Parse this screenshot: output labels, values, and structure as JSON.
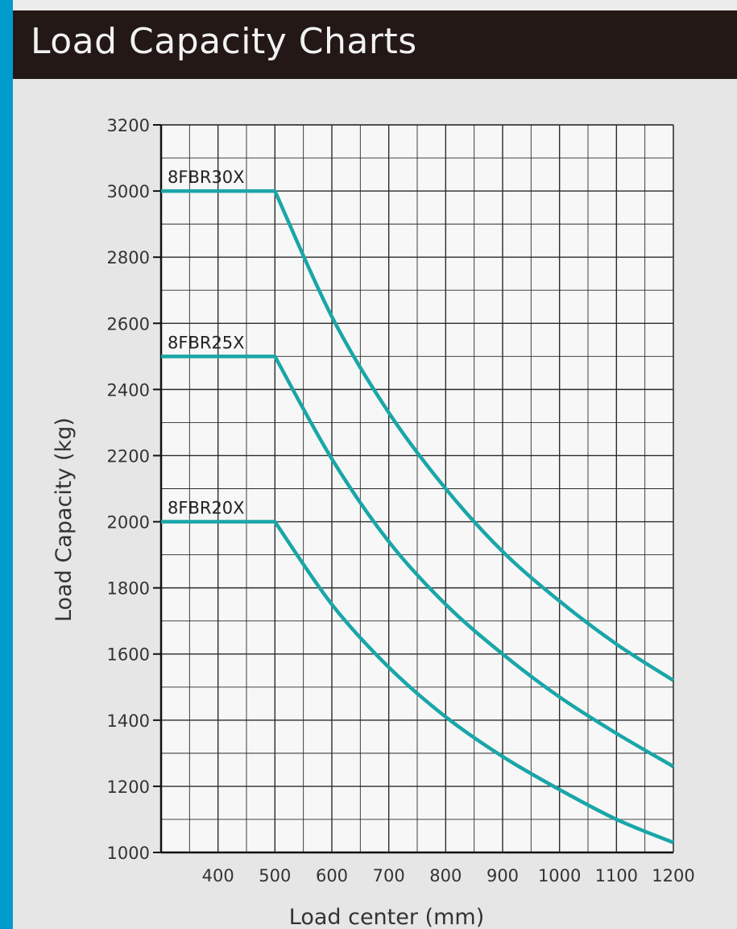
{
  "header": {
    "title": "Load Capacity Charts"
  },
  "colors": {
    "accent": "#009bcd",
    "header_bg": "#231815",
    "line": "#1aa6a8",
    "plot_bg": "#f7f7f7"
  },
  "chart_data": {
    "type": "line",
    "title": "Load Capacity Charts",
    "xlabel": "Load center (mm)",
    "ylabel": "Load Capacity (kg)",
    "xlim": [
      300,
      1200
    ],
    "ylim": [
      1000,
      3200
    ],
    "xticks": [
      400,
      500,
      600,
      700,
      800,
      900,
      1000,
      1100,
      1200
    ],
    "yticks": [
      1000,
      1200,
      1400,
      1600,
      1800,
      2000,
      2200,
      2400,
      2600,
      2800,
      3000,
      3200
    ],
    "grid": true,
    "series": [
      {
        "name": "8FBR30X",
        "x": [
          300,
          500,
          600,
          700,
          800,
          900,
          1000,
          1100,
          1200
        ],
        "y": [
          3000,
          3000,
          2620,
          2330,
          2100,
          1910,
          1760,
          1630,
          1520
        ]
      },
      {
        "name": "8FBR25X",
        "x": [
          300,
          500,
          600,
          700,
          800,
          900,
          1000,
          1100,
          1200
        ],
        "y": [
          2500,
          2500,
          2190,
          1940,
          1750,
          1600,
          1470,
          1360,
          1260
        ]
      },
      {
        "name": "8FBR20X",
        "x": [
          300,
          500,
          600,
          700,
          800,
          900,
          1000,
          1100,
          1200
        ],
        "y": [
          2000,
          2000,
          1750,
          1560,
          1410,
          1290,
          1190,
          1100,
          1030
        ]
      }
    ]
  }
}
